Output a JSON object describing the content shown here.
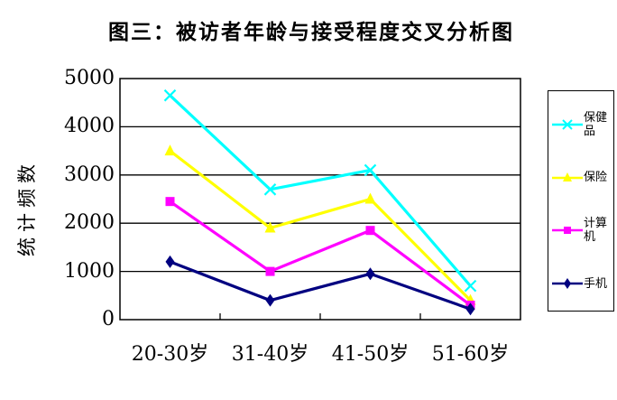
{
  "title": "图三：被访者年龄与接受程度交叉分析图",
  "colors": {
    "background": "#ffffff",
    "axis": "#000000",
    "series_baojianpin": "#00ffff",
    "series_baoxian": "#ffff00",
    "series_jisuanji": "#ff00ff",
    "series_shouji": "#000080"
  },
  "chart_data": {
    "type": "line",
    "title": "图三：被访者年龄与接受程度交叉分析图",
    "xlabel": "",
    "ylabel": "统计频数",
    "ylim": [
      0,
      5000
    ],
    "y_ticks": [
      0,
      1000,
      2000,
      3000,
      4000,
      5000
    ],
    "grid": true,
    "legend_position": "right",
    "categories": [
      "20-30岁",
      "31-40岁",
      "41-50岁",
      "51-60岁"
    ],
    "series": [
      {
        "name": "保健品",
        "color": "#00ffff",
        "marker": "x",
        "values": [
          4650,
          2700,
          3100,
          700
        ]
      },
      {
        "name": "保险",
        "color": "#ffff00",
        "marker": "triangle",
        "values": [
          3500,
          1900,
          2500,
          400
        ]
      },
      {
        "name": "计算机",
        "color": "#ff00ff",
        "marker": "square",
        "values": [
          2450,
          1000,
          1850,
          300
        ]
      },
      {
        "name": "手机",
        "color": "#000080",
        "marker": "diamond",
        "values": [
          1200,
          400,
          950,
          220
        ]
      }
    ]
  }
}
